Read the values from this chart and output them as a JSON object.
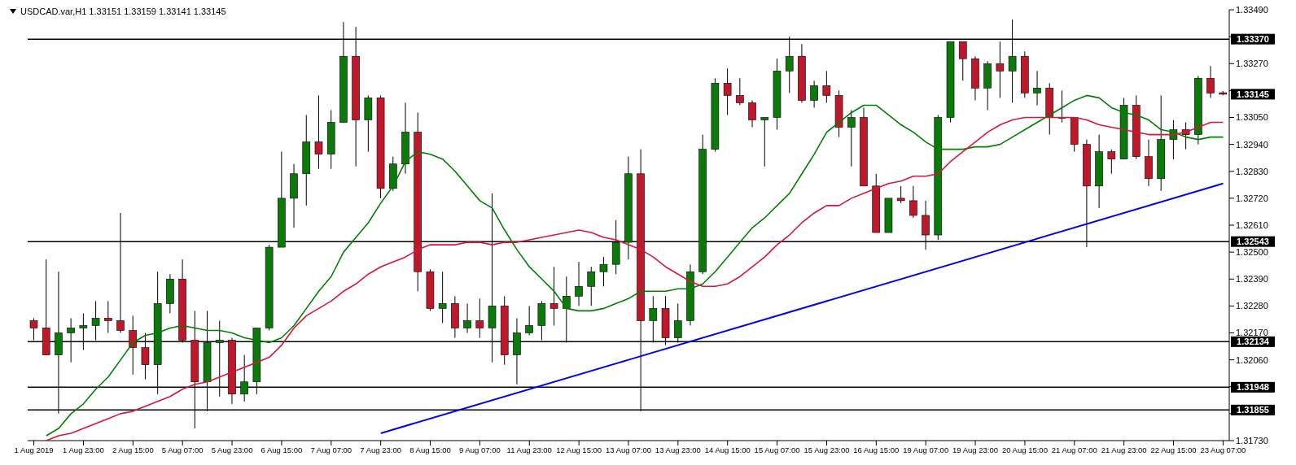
{
  "chart_data": {
    "type": "candlestick",
    "title": "USDCAD.var,H1 1.33151 1.33159 1.33141 1.33145",
    "categories": [
      "1 Aug 2019",
      null,
      null,
      null,
      "1 Aug 23:00",
      null,
      null,
      null,
      "2 Aug 15:00",
      null,
      null,
      null,
      "5 Aug 07:00",
      null,
      null,
      null,
      "5 Aug 23:00",
      null,
      null,
      null,
      "6 Aug 15:00",
      null,
      null,
      null,
      "7 Aug 07:00",
      null,
      null,
      null,
      "7 Aug 23:00",
      null,
      null,
      null,
      "8 Aug 15:00",
      null,
      null,
      null,
      "9 Aug 07:00",
      null,
      null,
      null,
      "11 Aug 23:00",
      null,
      null,
      null,
      "12 Aug 15:00",
      null,
      null,
      null,
      "13 Aug 07:00",
      null,
      null,
      null,
      "13 Aug 23:00",
      null,
      null,
      null,
      "14 Aug 15:00",
      null,
      null,
      null,
      "15 Aug 07:00",
      null,
      null,
      null,
      "15 Aug 23:00",
      null,
      null,
      null,
      "16 Aug 15:00",
      null,
      null,
      null,
      "19 Aug 07:00",
      null,
      null,
      null,
      "19 Aug 23:00",
      null,
      null,
      null,
      "20 Aug 15:00",
      null,
      null,
      null,
      "21 Aug 07:00",
      null,
      null,
      null,
      "21 Aug 23:00",
      null,
      null,
      null,
      "22 Aug 15:00",
      null,
      null,
      null,
      "23 Aug 07:00"
    ],
    "ohlc": [
      [
        1.3222,
        1.3223,
        1.3214,
        1.3219
      ],
      [
        1.3219,
        1.3247,
        1.3208,
        1.3208
      ],
      [
        1.3208,
        1.3242,
        1.3184,
        1.3217
      ],
      [
        1.3217,
        1.3223,
        1.3205,
        1.3219
      ],
      [
        1.3219,
        1.3225,
        1.321,
        1.322
      ],
      [
        1.322,
        1.323,
        1.3214,
        1.3223
      ],
      [
        1.3223,
        1.323,
        1.3217,
        1.3222
      ],
      [
        1.3222,
        1.3266,
        1.3217,
        1.3218
      ],
      [
        1.3218,
        1.3224,
        1.32,
        1.3211
      ],
      [
        1.3211,
        1.3217,
        1.3198,
        1.3204
      ],
      [
        1.3204,
        1.3242,
        1.3192,
        1.3229
      ],
      [
        1.3229,
        1.3241,
        1.3225,
        1.3239
      ],
      [
        1.3239,
        1.3247,
        1.3213,
        1.3214
      ],
      [
        1.3214,
        1.3226,
        1.3178,
        1.3197
      ],
      [
        1.3197,
        1.3226,
        1.3185,
        1.3213
      ],
      [
        1.3213,
        1.3222,
        1.3191,
        1.3214
      ],
      [
        1.3214,
        1.3215,
        1.3188,
        1.3192
      ],
      [
        1.3192,
        1.3208,
        1.3189,
        1.3197
      ],
      [
        1.3197,
        1.3219,
        1.3192,
        1.3219
      ],
      [
        1.3219,
        1.3253,
        1.3218,
        1.3252
      ],
      [
        1.3252,
        1.3291,
        1.3252,
        1.3272
      ],
      [
        1.3272,
        1.3286,
        1.326,
        1.3282
      ],
      [
        1.3282,
        1.3306,
        1.3269,
        1.3295
      ],
      [
        1.3295,
        1.3314,
        1.3284,
        1.329
      ],
      [
        1.329,
        1.3308,
        1.3284,
        1.3303
      ],
      [
        1.3303,
        1.3344,
        1.3303,
        1.333
      ],
      [
        1.333,
        1.3342,
        1.3285,
        1.3304
      ],
      [
        1.3304,
        1.3314,
        1.3291,
        1.3313
      ],
      [
        1.3313,
        1.3314,
        1.3272,
        1.3276
      ],
      [
        1.3276,
        1.3289,
        1.3275,
        1.3286
      ],
      [
        1.3286,
        1.3311,
        1.3282,
        1.3299
      ],
      [
        1.3299,
        1.3307,
        1.3234,
        1.3242
      ],
      [
        1.3242,
        1.3243,
        1.3226,
        1.3227
      ],
      [
        1.3227,
        1.3242,
        1.3221,
        1.3229
      ],
      [
        1.3229,
        1.3232,
        1.3215,
        1.3219
      ],
      [
        1.3219,
        1.3229,
        1.3217,
        1.3222
      ],
      [
        1.3222,
        1.3231,
        1.3215,
        1.3219
      ],
      [
        1.3219,
        1.3274,
        1.3205,
        1.3228
      ],
      [
        1.3228,
        1.3232,
        1.3204,
        1.3208
      ],
      [
        1.3208,
        1.3223,
        1.3196,
        1.3217
      ],
      [
        1.3217,
        1.3228,
        1.3216,
        1.322
      ],
      [
        1.322,
        1.323,
        1.3214,
        1.3229
      ],
      [
        1.3229,
        1.3244,
        1.322,
        1.3227
      ],
      [
        1.3227,
        1.324,
        1.3213,
        1.3232
      ],
      [
        1.3232,
        1.3246,
        1.3228,
        1.3236
      ],
      [
        1.3236,
        1.3244,
        1.3228,
        1.3242
      ],
      [
        1.3242,
        1.3248,
        1.3236,
        1.3245
      ],
      [
        1.3245,
        1.3263,
        1.3241,
        1.3254
      ],
      [
        1.3254,
        1.3289,
        1.3247,
        1.3282
      ],
      [
        1.3282,
        1.3292,
        1.3185,
        1.3222
      ],
      [
        1.3222,
        1.3232,
        1.3213,
        1.3227
      ],
      [
        1.3227,
        1.3232,
        1.3212,
        1.3215
      ],
      [
        1.3215,
        1.3229,
        1.3213,
        1.3222
      ],
      [
        1.3222,
        1.3245,
        1.322,
        1.3242
      ],
      [
        1.3242,
        1.3298,
        1.3241,
        1.3292
      ],
      [
        1.3292,
        1.3321,
        1.3291,
        1.3319
      ],
      [
        1.3319,
        1.3325,
        1.3306,
        1.3314
      ],
      [
        1.3314,
        1.3321,
        1.331,
        1.3311
      ],
      [
        1.3311,
        1.3312,
        1.3301,
        1.3304
      ],
      [
        1.3304,
        1.3305,
        1.3285,
        1.3305
      ],
      [
        1.3305,
        1.3329,
        1.33,
        1.3324
      ],
      [
        1.3324,
        1.3338,
        1.3315,
        1.333
      ],
      [
        1.333,
        1.3335,
        1.3311,
        1.3312
      ],
      [
        1.3312,
        1.332,
        1.3309,
        1.3318
      ],
      [
        1.3318,
        1.3324,
        1.3311,
        1.3314
      ],
      [
        1.3314,
        1.3316,
        1.3297,
        1.3301
      ],
      [
        1.3301,
        1.3308,
        1.3285,
        1.3305
      ],
      [
        1.3305,
        1.3309,
        1.3277,
        1.3277
      ],
      [
        1.3277,
        1.3282,
        1.3258,
        1.3258
      ],
      [
        1.3258,
        1.3272,
        1.3258,
        1.3272
      ],
      [
        1.3272,
        1.3277,
        1.327,
        1.3271
      ],
      [
        1.3271,
        1.3277,
        1.3264,
        1.3265
      ],
      [
        1.3265,
        1.3271,
        1.3251,
        1.3257
      ],
      [
        1.3257,
        1.3306,
        1.3255,
        1.3305
      ],
      [
        1.3305,
        1.3336,
        1.3303,
        1.3336
      ],
      [
        1.3336,
        1.3336,
        1.332,
        1.3329
      ],
      [
        1.3329,
        1.333,
        1.3312,
        1.3317
      ],
      [
        1.3317,
        1.3328,
        1.3308,
        1.3327
      ],
      [
        1.3327,
        1.3336,
        1.3313,
        1.3324
      ],
      [
        1.3324,
        1.3345,
        1.3311,
        1.333
      ],
      [
        1.333,
        1.3332,
        1.3313,
        1.3315
      ],
      [
        1.3315,
        1.3324,
        1.331,
        1.3317
      ],
      [
        1.3317,
        1.3319,
        1.3298,
        1.3305
      ],
      [
        1.3305,
        1.3316,
        1.3303,
        1.3305
      ],
      [
        1.3305,
        1.3305,
        1.3291,
        1.3294
      ],
      [
        1.3294,
        1.3296,
        1.3252,
        1.3277
      ],
      [
        1.3277,
        1.3298,
        1.3268,
        1.3291
      ],
      [
        1.3291,
        1.3292,
        1.3282,
        1.3288
      ],
      [
        1.3288,
        1.3313,
        1.3288,
        1.331
      ],
      [
        1.331,
        1.3314,
        1.3288,
        1.3289
      ],
      [
        1.3289,
        1.3296,
        1.3277,
        1.328
      ],
      [
        1.328,
        1.3314,
        1.3275,
        1.3296
      ],
      [
        1.3296,
        1.3304,
        1.3288,
        1.33
      ],
      [
        1.33,
        1.3303,
        1.3292,
        1.3298
      ],
      [
        1.3298,
        1.3322,
        1.3294,
        1.3321
      ],
      [
        1.3321,
        1.3326,
        1.3313,
        1.3315
      ],
      [
        1.33151,
        1.33159,
        1.33141,
        1.33145
      ]
    ],
    "series": [
      {
        "type": "line",
        "color": "#008000",
        "values": [
          null,
          1.3175,
          1.3178,
          1.3184,
          1.3188,
          1.3194,
          1.3199,
          1.3206,
          1.3213,
          1.3216,
          1.3217,
          1.3219,
          1.322,
          1.3219,
          1.3218,
          1.3218,
          1.3217,
          1.3215,
          1.3214,
          1.3213,
          1.3215,
          1.322,
          1.3227,
          1.3234,
          1.324,
          1.325,
          1.3256,
          1.3262,
          1.327,
          1.3277,
          1.3287,
          1.3291,
          1.329,
          1.3288,
          1.3283,
          1.3277,
          1.3271,
          1.3268,
          1.3259,
          1.3251,
          1.3244,
          1.3239,
          1.3234,
          1.3227,
          1.3226,
          1.3226,
          1.3227,
          1.3229,
          1.3231,
          1.3234,
          1.3234,
          1.3234,
          1.3235,
          1.3235,
          1.3237,
          1.3242,
          1.3248,
          1.3254,
          1.326,
          1.3264,
          1.3269,
          1.3274,
          1.3282,
          1.329,
          1.3299,
          1.3303,
          1.3307,
          1.331,
          1.331,
          1.3306,
          1.3302,
          1.3299,
          1.3295,
          1.3292,
          1.3292,
          1.3292,
          1.3293,
          1.3293,
          1.3294,
          1.3297,
          1.33,
          1.3303,
          1.3306,
          1.3309,
          1.3312,
          1.3314,
          1.3313,
          1.3309,
          1.3307,
          1.3306,
          1.3304,
          1.33,
          1.3299,
          1.3297,
          1.3296,
          1.3297,
          1.3297
        ]
      },
      {
        "type": "line",
        "color": "#dc143c",
        "values": [
          null,
          1.3173,
          1.3175,
          1.3176,
          1.3178,
          1.318,
          1.3182,
          1.3184,
          1.3185,
          1.3187,
          1.3189,
          1.3191,
          1.3194,
          1.3196,
          1.3197,
          1.3199,
          1.3201,
          1.3203,
          1.3205,
          1.3207,
          1.3212,
          1.3219,
          1.3224,
          1.3227,
          1.323,
          1.3234,
          1.3237,
          1.3241,
          1.3244,
          1.3246,
          1.3248,
          1.3251,
          1.3253,
          1.3253,
          1.3253,
          1.3254,
          1.3254,
          1.3253,
          1.3254,
          1.3254,
          1.3255,
          1.3256,
          1.3257,
          1.3258,
          1.3259,
          1.3258,
          1.3256,
          1.3255,
          1.3253,
          1.3251,
          1.3248,
          1.3244,
          1.3241,
          1.3238,
          1.3236,
          1.3236,
          1.3237,
          1.324,
          1.3244,
          1.3248,
          1.3253,
          1.3257,
          1.3262,
          1.3266,
          1.3269,
          1.3269,
          1.3272,
          1.3274,
          1.3276,
          1.3278,
          1.3279,
          1.3281,
          1.3281,
          1.3282,
          1.3287,
          1.3291,
          1.3295,
          1.3299,
          1.3302,
          1.3304,
          1.3305,
          1.3305,
          1.3305,
          1.3305,
          1.3305,
          1.3304,
          1.3302,
          1.3301,
          1.33,
          1.3299,
          1.3298,
          1.3298,
          1.3298,
          1.3299,
          1.3301,
          1.3303,
          1.3303
        ]
      },
      {
        "type": "line",
        "color": "#0000ff",
        "x": [
          "7 Aug 23:00",
          "13 Aug 07:00",
          "23 Aug 07:00"
        ],
        "values": [
          1.3176,
          1.3206,
          1.3278
        ]
      }
    ],
    "ylim": [
      1.3173,
      1.3349
    ],
    "yticks": [
      {
        "value": 1.3349,
        "label": "1.33490"
      },
      {
        "value": 1.3338,
        "label": null
      },
      {
        "value": 1.3327,
        "label": "1.33270"
      },
      {
        "value": 1.3316,
        "label": null
      },
      {
        "value": 1.3305,
        "label": "1.33050"
      },
      {
        "value": 1.3294,
        "label": "1.32940"
      },
      {
        "value": 1.3283,
        "label": "1.32830"
      },
      {
        "value": 1.3272,
        "label": "1.32720"
      },
      {
        "value": 1.3261,
        "label": "1.32610"
      },
      {
        "value": 1.325,
        "label": "1.32500"
      },
      {
        "value": 1.3239,
        "label": "1.32390"
      },
      {
        "value": 1.3228,
        "label": "1.32280"
      },
      {
        "value": 1.3217,
        "label": "1.32170"
      },
      {
        "value": 1.3206,
        "label": "1.32060"
      },
      {
        "value": 1.3195,
        "label": null
      },
      {
        "value": 1.3184,
        "label": null
      },
      {
        "value": 1.3173,
        "label": "1.31730"
      }
    ],
    "ref_lines": [
      {
        "axis": "y",
        "value": 1.3337,
        "label": "1.33370",
        "color": "#000000"
      },
      {
        "axis": "y",
        "value": 1.32543,
        "label": "1.32543",
        "color": "#000000"
      },
      {
        "axis": "y",
        "value": 1.32134,
        "label": "1.32134",
        "color": "#000000"
      },
      {
        "axis": "y",
        "value": 1.31948,
        "label": "1.31948",
        "color": "#000000"
      },
      {
        "axis": "y",
        "value": 1.31855,
        "label": "1.31855",
        "color": "#000000"
      }
    ],
    "annotations": [
      "1.33145"
    ],
    "grid": false
  }
}
